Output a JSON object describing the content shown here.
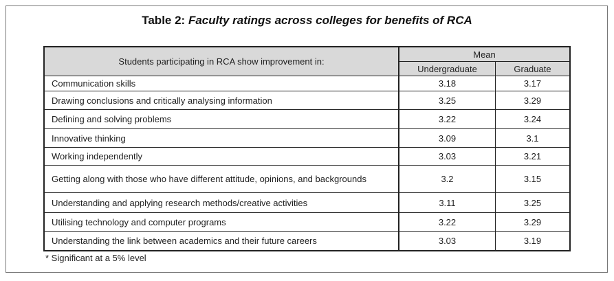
{
  "title_prefix": "Table 2: ",
  "title_italic": "Faculty ratings across colleges for benefits of RCA",
  "header": {
    "description": "Students participating in RCA show improvement in:",
    "group": "Mean",
    "col1": "Undergraduate",
    "col2": "Graduate"
  },
  "rows": [
    {
      "label": "Communication skills",
      "ug": "3.18",
      "g": "3.17"
    },
    {
      "label": "Drawing conclusions and critically analysing information",
      "ug": "3.25",
      "g": "3.29"
    },
    {
      "label": "Defining and solving problems",
      "ug": "3.22",
      "g": "3.24"
    },
    {
      "label": "Innovative thinking",
      "ug": "3.09",
      "g": "3.1"
    },
    {
      "label": "Working independently",
      "ug": "3.03",
      "g": "3.21"
    },
    {
      "label": "Getting along with those who have different attitude, opinions, and backgrounds",
      "ug": "3.2",
      "g": "3.15"
    },
    {
      "label": "Understanding and applying research methods/creative activities",
      "ug": "3.11",
      "g": "3.25"
    },
    {
      "label": "Utilising technology and computer programs",
      "ug": "3.22",
      "g": "3.29"
    },
    {
      "label": "Understanding the link between academics and their future careers",
      "ug": "3.03",
      "g": "3.19"
    }
  ],
  "footnote": "* Significant at a 5% level"
}
